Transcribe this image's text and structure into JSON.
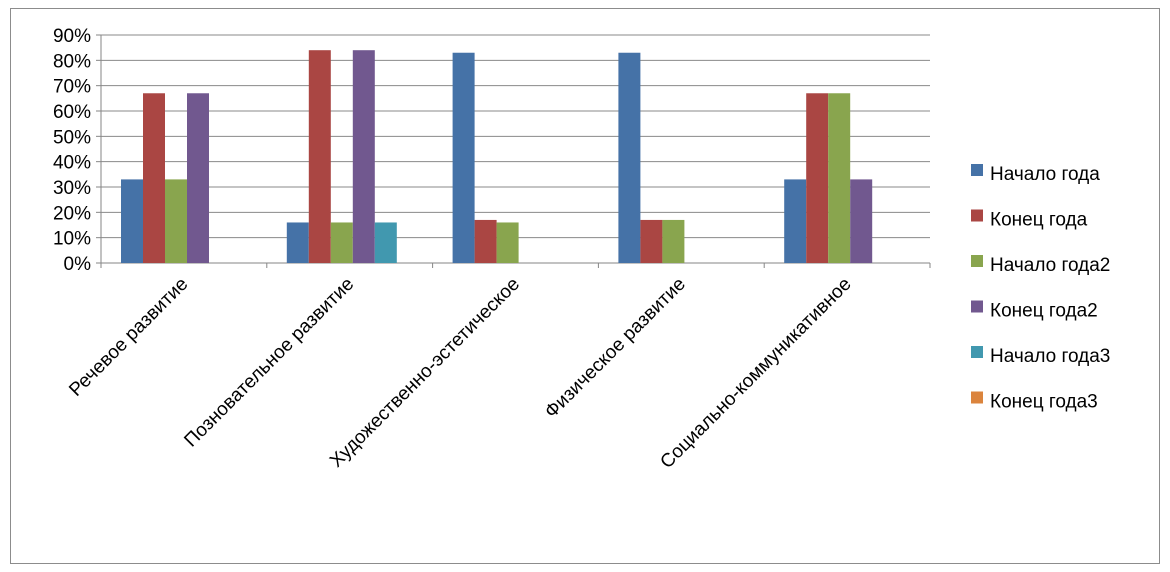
{
  "chart_data": {
    "type": "bar",
    "categories": [
      "Речевое развитие",
      "Позновательное развитие",
      "Художественно-эстетическое",
      "Физическое развитие",
      "Социально-коммуникативное"
    ],
    "series": [
      {
        "name": "Начало года",
        "color": "#4572A7",
        "values": [
          0.33,
          0.16,
          0.83,
          0.83,
          0.33
        ]
      },
      {
        "name": "Конец года",
        "color": "#AA4643",
        "values": [
          0.67,
          0.84,
          0.17,
          0.17,
          0.67
        ]
      },
      {
        "name": "Начало года2",
        "color": "#89A54E",
        "values": [
          0.33,
          0.16,
          0.16,
          0.17,
          0.67
        ]
      },
      {
        "name": "Конец года2",
        "color": "#71588F",
        "values": [
          0.67,
          0.84,
          null,
          null,
          0.33
        ]
      },
      {
        "name": "Начало года3",
        "color": "#4198AF",
        "values": [
          null,
          0.16,
          null,
          null,
          null
        ]
      },
      {
        "name": "Конец года3",
        "color": "#DB843D",
        "values": [
          null,
          null,
          null,
          null,
          null
        ]
      }
    ],
    "y_ticks": [
      "0%",
      "10%",
      "20%",
      "30%",
      "40%",
      "50%",
      "60%",
      "70%",
      "80%",
      "90%"
    ],
    "ylim": [
      0,
      0.9
    ],
    "grid": true,
    "legend": "right"
  }
}
